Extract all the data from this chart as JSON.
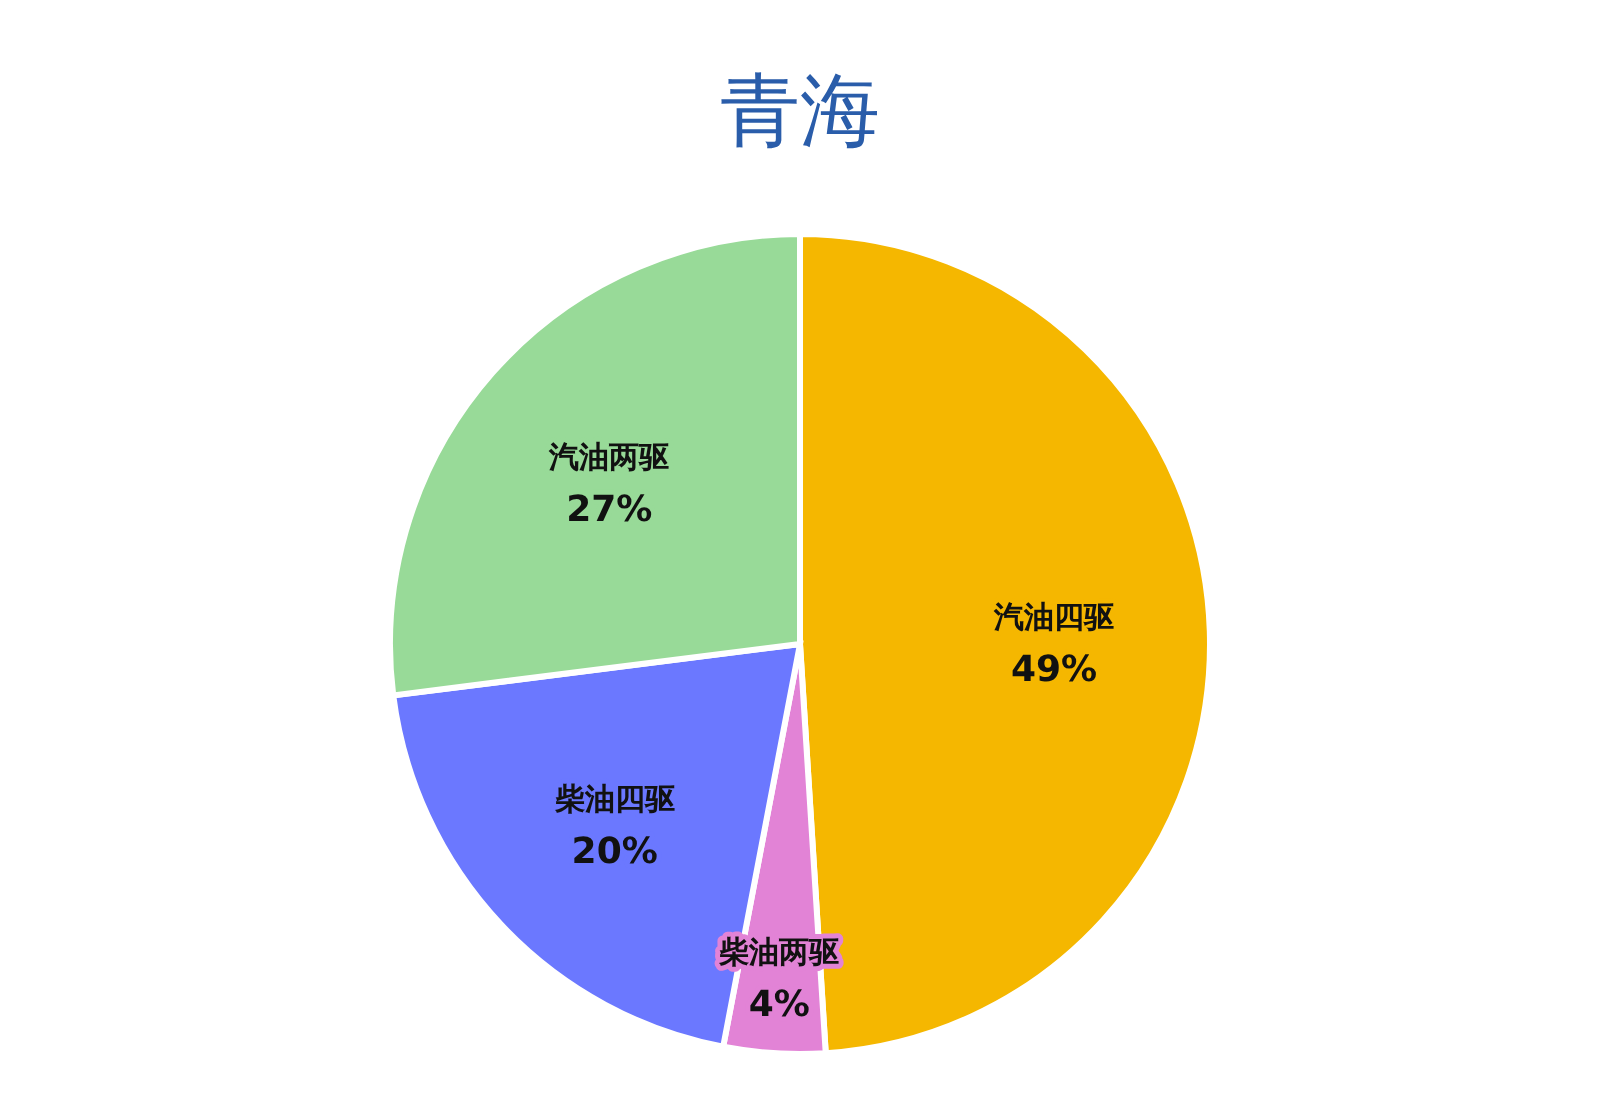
{
  "chart_data": {
    "type": "pie",
    "title": "青海",
    "categories": [
      "汽油四驱",
      "柴油两驱",
      "柴油四驱",
      "汽油两驱"
    ],
    "values": [
      49,
      4,
      20,
      27
    ],
    "value_labels": [
      "49%",
      "4%",
      "20%",
      "27%"
    ],
    "colors": [
      "#f5b700",
      "#e283d6",
      "#6b78ff",
      "#98da98"
    ]
  }
}
